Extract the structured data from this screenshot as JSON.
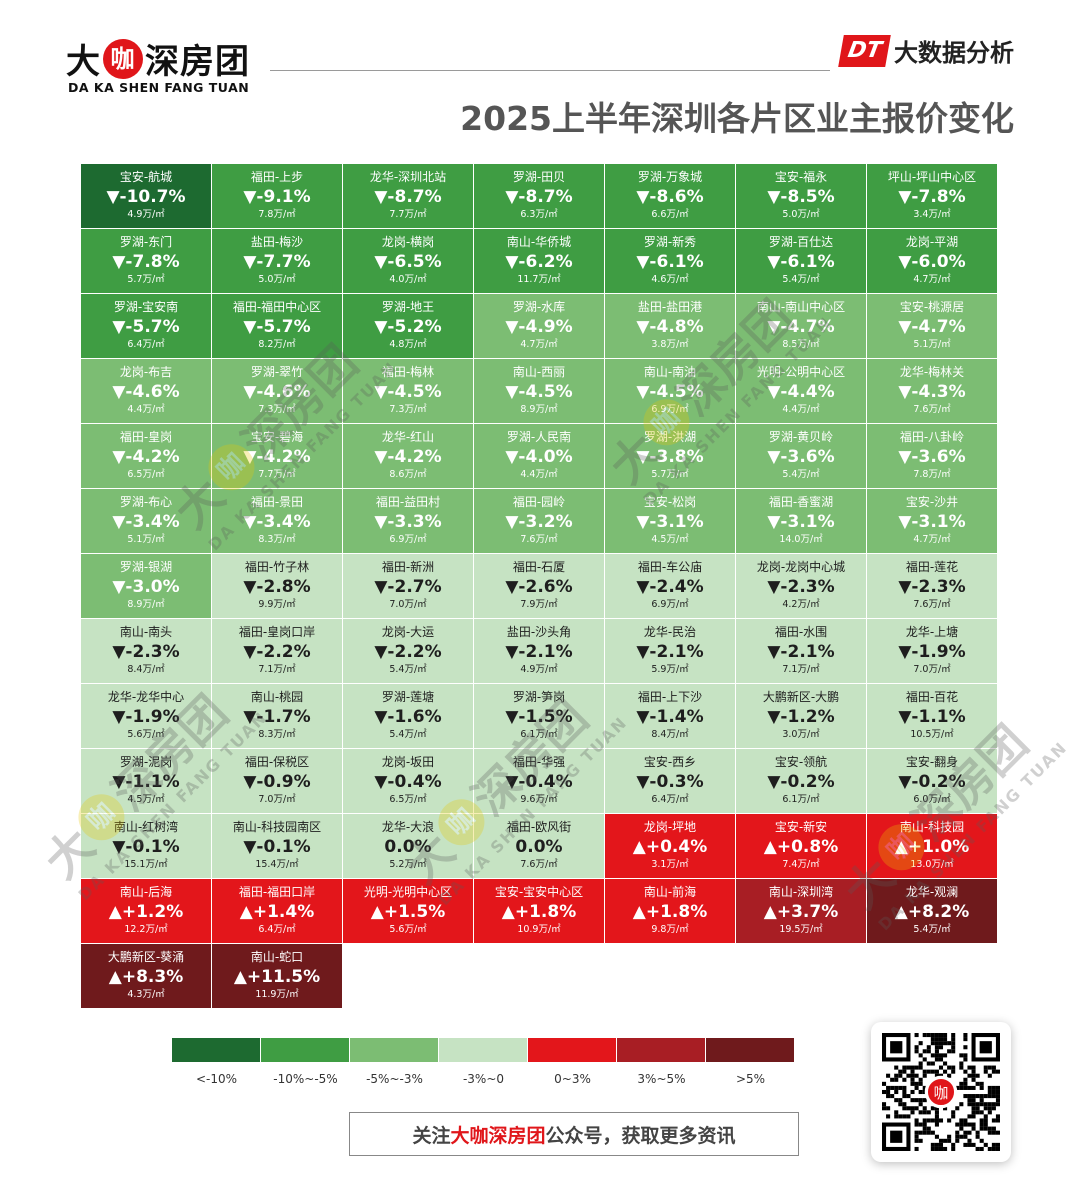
{
  "logo": {
    "main_part1": "大",
    "main_ka": "咖",
    "main_part2": "深房团",
    "sub": "DA KA SHEN FANG TUAN"
  },
  "header": {
    "badge": "DT",
    "label": "大数据分析",
    "title": "2025上半年深圳各片区业主报价变化"
  },
  "watermark": {
    "part1": "大",
    "ka": "咖",
    "part2": "深房团",
    "sub": "DA KA SHEN FANG TUAN"
  },
  "chart_data": {
    "type": "heatmap",
    "title": "2025上半年深圳各片区业主报价变化",
    "cells": [
      {
        "name": "宝安-航城",
        "change": "▼-10.7%",
        "price": "4.9万/㎡",
        "pct": -10.7
      },
      {
        "name": "福田-上步",
        "change": "▼-9.1%",
        "price": "7.8万/㎡",
        "pct": -9.1
      },
      {
        "name": "龙华-深圳北站",
        "change": "▼-8.7%",
        "price": "7.7万/㎡",
        "pct": -8.7
      },
      {
        "name": "罗湖-田贝",
        "change": "▼-8.7%",
        "price": "6.3万/㎡",
        "pct": -8.7
      },
      {
        "name": "罗湖-万象城",
        "change": "▼-8.6%",
        "price": "6.6万/㎡",
        "pct": -8.6
      },
      {
        "name": "宝安-福永",
        "change": "▼-8.5%",
        "price": "5.0万/㎡",
        "pct": -8.5
      },
      {
        "name": "坪山-坪山中心区",
        "change": "▼-7.8%",
        "price": "3.4万/㎡",
        "pct": -7.8
      },
      {
        "name": "罗湖-东门",
        "change": "▼-7.8%",
        "price": "5.7万/㎡",
        "pct": -7.8
      },
      {
        "name": "盐田-梅沙",
        "change": "▼-7.7%",
        "price": "5.0万/㎡",
        "pct": -7.7
      },
      {
        "name": "龙岗-横岗",
        "change": "▼-6.5%",
        "price": "4.0万/㎡",
        "pct": -6.5
      },
      {
        "name": "南山-华侨城",
        "change": "▼-6.2%",
        "price": "11.7万/㎡",
        "pct": -6.2
      },
      {
        "name": "罗湖-新秀",
        "change": "▼-6.1%",
        "price": "4.6万/㎡",
        "pct": -6.1
      },
      {
        "name": "罗湖-百仕达",
        "change": "▼-6.1%",
        "price": "5.4万/㎡",
        "pct": -6.1
      },
      {
        "name": "龙岗-平湖",
        "change": "▼-6.0%",
        "price": "4.7万/㎡",
        "pct": -6.0
      },
      {
        "name": "罗湖-宝安南",
        "change": "▼-5.7%",
        "price": "6.4万/㎡",
        "pct": -5.7
      },
      {
        "name": "福田-福田中心区",
        "change": "▼-5.7%",
        "price": "8.2万/㎡",
        "pct": -5.7
      },
      {
        "name": "罗湖-地王",
        "change": "▼-5.2%",
        "price": "4.8万/㎡",
        "pct": -5.2
      },
      {
        "name": "罗湖-水库",
        "change": "▼-4.9%",
        "price": "4.7万/㎡",
        "pct": -4.9
      },
      {
        "name": "盐田-盐田港",
        "change": "▼-4.8%",
        "price": "3.8万/㎡",
        "pct": -4.8
      },
      {
        "name": "南山-南山中心区",
        "change": "▼-4.7%",
        "price": "8.5万/㎡",
        "pct": -4.7
      },
      {
        "name": "宝安-桃源居",
        "change": "▼-4.7%",
        "price": "5.1万/㎡",
        "pct": -4.7
      },
      {
        "name": "龙岗-布吉",
        "change": "▼-4.6%",
        "price": "4.4万/㎡",
        "pct": -4.6
      },
      {
        "name": "罗湖-翠竹",
        "change": "▼-4.6%",
        "price": "7.3万/㎡",
        "pct": -4.6
      },
      {
        "name": "福田-梅林",
        "change": "▼-4.5%",
        "price": "7.3万/㎡",
        "pct": -4.5
      },
      {
        "name": "南山-西丽",
        "change": "▼-4.5%",
        "price": "8.9万/㎡",
        "pct": -4.5
      },
      {
        "name": "南山-南油",
        "change": "▼-4.5%",
        "price": "6.9万/㎡",
        "pct": -4.5
      },
      {
        "name": "光明-公明中心区",
        "change": "▼-4.4%",
        "price": "4.4万/㎡",
        "pct": -4.4
      },
      {
        "name": "龙华-梅林关",
        "change": "▼-4.3%",
        "price": "7.6万/㎡",
        "pct": -4.3
      },
      {
        "name": "福田-皇岗",
        "change": "▼-4.2%",
        "price": "6.5万/㎡",
        "pct": -4.2
      },
      {
        "name": "宝安-碧海",
        "change": "▼-4.2%",
        "price": "7.7万/㎡",
        "pct": -4.2
      },
      {
        "name": "龙华-红山",
        "change": "▼-4.2%",
        "price": "8.6万/㎡",
        "pct": -4.2
      },
      {
        "name": "罗湖-人民南",
        "change": "▼-4.0%",
        "price": "4.4万/㎡",
        "pct": -4.0
      },
      {
        "name": "罗湖-洪湖",
        "change": "▼-3.8%",
        "price": "5.7万/㎡",
        "pct": -3.8
      },
      {
        "name": "罗湖-黄贝岭",
        "change": "▼-3.6%",
        "price": "5.4万/㎡",
        "pct": -3.6
      },
      {
        "name": "福田-八卦岭",
        "change": "▼-3.6%",
        "price": "7.8万/㎡",
        "pct": -3.6
      },
      {
        "name": "罗湖-布心",
        "change": "▼-3.4%",
        "price": "5.1万/㎡",
        "pct": -3.4
      },
      {
        "name": "福田-景田",
        "change": "▼-3.4%",
        "price": "8.3万/㎡",
        "pct": -3.4
      },
      {
        "name": "福田-益田村",
        "change": "▼-3.3%",
        "price": "6.9万/㎡",
        "pct": -3.3
      },
      {
        "name": "福田-园岭",
        "change": "▼-3.2%",
        "price": "7.6万/㎡",
        "pct": -3.2
      },
      {
        "name": "宝安-松岗",
        "change": "▼-3.1%",
        "price": "4.5万/㎡",
        "pct": -3.1
      },
      {
        "name": "福田-香蜜湖",
        "change": "▼-3.1%",
        "price": "14.0万/㎡",
        "pct": -3.1
      },
      {
        "name": "宝安-沙井",
        "change": "▼-3.1%",
        "price": "4.7万/㎡",
        "pct": -3.1
      },
      {
        "name": "罗湖-银湖",
        "change": "▼-3.0%",
        "price": "8.9万/㎡",
        "pct": -3.0
      },
      {
        "name": "福田-竹子林",
        "change": "▼-2.8%",
        "price": "9.9万/㎡",
        "pct": -2.8
      },
      {
        "name": "福田-新洲",
        "change": "▼-2.7%",
        "price": "7.0万/㎡",
        "pct": -2.7
      },
      {
        "name": "福田-石厦",
        "change": "▼-2.6%",
        "price": "7.9万/㎡",
        "pct": -2.6
      },
      {
        "name": "福田-车公庙",
        "change": "▼-2.4%",
        "price": "6.9万/㎡",
        "pct": -2.4
      },
      {
        "name": "龙岗-龙岗中心城",
        "change": "▼-2.3%",
        "price": "4.2万/㎡",
        "pct": -2.3
      },
      {
        "name": "福田-莲花",
        "change": "▼-2.3%",
        "price": "7.6万/㎡",
        "pct": -2.3
      },
      {
        "name": "南山-南头",
        "change": "▼-2.3%",
        "price": "8.4万/㎡",
        "pct": -2.3
      },
      {
        "name": "福田-皇岗口岸",
        "change": "▼-2.2%",
        "price": "7.1万/㎡",
        "pct": -2.2
      },
      {
        "name": "龙岗-大运",
        "change": "▼-2.2%",
        "price": "5.4万/㎡",
        "pct": -2.2
      },
      {
        "name": "盐田-沙头角",
        "change": "▼-2.1%",
        "price": "4.9万/㎡",
        "pct": -2.1
      },
      {
        "name": "龙华-民治",
        "change": "▼-2.1%",
        "price": "5.9万/㎡",
        "pct": -2.1
      },
      {
        "name": "福田-水围",
        "change": "▼-2.1%",
        "price": "7.1万/㎡",
        "pct": -2.1
      },
      {
        "name": "龙华-上塘",
        "change": "▼-1.9%",
        "price": "7.0万/㎡",
        "pct": -1.9
      },
      {
        "name": "龙华-龙华中心",
        "change": "▼-1.9%",
        "price": "5.6万/㎡",
        "pct": -1.9
      },
      {
        "name": "南山-桃园",
        "change": "▼-1.7%",
        "price": "8.3万/㎡",
        "pct": -1.7
      },
      {
        "name": "罗湖-莲塘",
        "change": "▼-1.6%",
        "price": "5.4万/㎡",
        "pct": -1.6
      },
      {
        "name": "罗湖-笋岗",
        "change": "▼-1.5%",
        "price": "6.1万/㎡",
        "pct": -1.5
      },
      {
        "name": "福田-上下沙",
        "change": "▼-1.4%",
        "price": "8.4万/㎡",
        "pct": -1.4
      },
      {
        "name": "大鹏新区-大鹏",
        "change": "▼-1.2%",
        "price": "3.0万/㎡",
        "pct": -1.2
      },
      {
        "name": "福田-百花",
        "change": "▼-1.1%",
        "price": "10.5万/㎡",
        "pct": -1.1
      },
      {
        "name": "罗湖-泥岗",
        "change": "▼-1.1%",
        "price": "4.5万/㎡",
        "pct": -1.1
      },
      {
        "name": "福田-保税区",
        "change": "▼-0.9%",
        "price": "7.0万/㎡",
        "pct": -0.9
      },
      {
        "name": "龙岗-坂田",
        "change": "▼-0.4%",
        "price": "6.5万/㎡",
        "pct": -0.4
      },
      {
        "name": "福田-华强",
        "change": "▼-0.4%",
        "price": "9.6万/㎡",
        "pct": -0.4
      },
      {
        "name": "宝安-西乡",
        "change": "▼-0.3%",
        "price": "6.4万/㎡",
        "pct": -0.3
      },
      {
        "name": "宝安-领航",
        "change": "▼-0.2%",
        "price": "6.1万/㎡",
        "pct": -0.2
      },
      {
        "name": "宝安-翻身",
        "change": "▼-0.2%",
        "price": "6.0万/㎡",
        "pct": -0.2
      },
      {
        "name": "南山-红树湾",
        "change": "▼-0.1%",
        "price": "15.1万/㎡",
        "pct": -0.1
      },
      {
        "name": "南山-科技园南区",
        "change": "▼-0.1%",
        "price": "15.4万/㎡",
        "pct": -0.1
      },
      {
        "name": "龙华-大浪",
        "change": "0.0%",
        "price": "5.2万/㎡",
        "pct": 0.0
      },
      {
        "name": "福田-欧风街",
        "change": "0.0%",
        "price": "7.6万/㎡",
        "pct": 0.0
      },
      {
        "name": "龙岗-坪地",
        "change": "▲+0.4%",
        "price": "3.1万/㎡",
        "pct": 0.4
      },
      {
        "name": "宝安-新安",
        "change": "▲+0.8%",
        "price": "7.4万/㎡",
        "pct": 0.8
      },
      {
        "name": "南山-科技园",
        "change": "▲+1.0%",
        "price": "13.0万/㎡",
        "pct": 1.0
      },
      {
        "name": "南山-后海",
        "change": "▲+1.2%",
        "price": "12.2万/㎡",
        "pct": 1.2
      },
      {
        "name": "福田-福田口岸",
        "change": "▲+1.4%",
        "price": "6.4万/㎡",
        "pct": 1.4
      },
      {
        "name": "光明-光明中心区",
        "change": "▲+1.5%",
        "price": "5.6万/㎡",
        "pct": 1.5
      },
      {
        "name": "宝安-宝安中心区",
        "change": "▲+1.8%",
        "price": "10.9万/㎡",
        "pct": 1.8
      },
      {
        "name": "南山-前海",
        "change": "▲+1.8%",
        "price": "9.8万/㎡",
        "pct": 1.8
      },
      {
        "name": "南山-深圳湾",
        "change": "▲+3.7%",
        "price": "19.5万/㎡",
        "pct": 3.7
      },
      {
        "name": "龙华-观澜",
        "change": "▲+8.2%",
        "price": "5.4万/㎡",
        "pct": 8.2
      },
      {
        "name": "大鹏新区-葵涌",
        "change": "▲+8.3%",
        "price": "4.3万/㎡",
        "pct": 8.3
      },
      {
        "name": "南山-蛇口",
        "change": "▲+11.5%",
        "price": "11.9万/㎡",
        "pct": 11.5
      }
    ],
    "legend": [
      {
        "label": "<-10%",
        "color": "#1d6a30"
      },
      {
        "label": "-10%~-5%",
        "color": "#3f9d43"
      },
      {
        "label": "-5%~-3%",
        "color": "#7cbd73"
      },
      {
        "label": "-3%~0",
        "color": "#c6e3c3"
      },
      {
        "label": "0~3%",
        "color": "#e3161b"
      },
      {
        "label": "3%~5%",
        "color": "#a81e24"
      },
      {
        "label": ">5%",
        "color": "#6f1a1c"
      }
    ]
  },
  "footer": {
    "follow_prefix": "关注",
    "follow_brand": "大咖深房团",
    "follow_suffix": "公众号，获取更多资讯"
  }
}
